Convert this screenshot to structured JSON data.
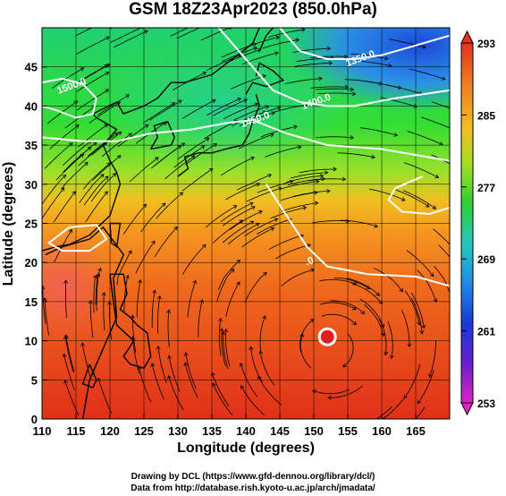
{
  "title": "GSM 18Z23Apr2023 (850.0hPa)",
  "xaxis": {
    "label": "Longitude (degrees)",
    "min": 110,
    "max": 170,
    "ticks": [
      110,
      115,
      120,
      125,
      130,
      135,
      140,
      145,
      150,
      155,
      160,
      165
    ]
  },
  "yaxis": {
    "label": "Latitude  (degrees)",
    "min": 0,
    "max": 50,
    "ticks": [
      0,
      5,
      10,
      15,
      20,
      25,
      30,
      35,
      40,
      45
    ]
  },
  "colorbar": {
    "min": 253,
    "max": 293,
    "labels": [
      293,
      285,
      277,
      269,
      261,
      253
    ]
  },
  "contours": [
    {
      "label": "1350.0",
      "lon": 157,
      "lat": 45.7,
      "color": "#ffffff"
    },
    {
      "label": "1400.0",
      "lon": 150.5,
      "lat": 40.2,
      "color": "#ffffff"
    },
    {
      "label": "1450.0",
      "lon": 141.5,
      "lat": 37.9,
      "color": "#ffffff"
    },
    {
      "label": "1500.0",
      "lon": 114.5,
      "lat": 42.2,
      "color": "#ffffff"
    },
    {
      "label": ".0",
      "lon": 149.5,
      "lat": 19.8,
      "color": "#ffffff"
    }
  ],
  "marker": {
    "lon": 152,
    "lat": 10.5,
    "color": "#ffffff"
  },
  "credits": [
    "Drawing by DCL (https://www.gfd-dennou.org/library/dcl/)",
    "Data from http://database.rish.kyoto-u.ac.jp/arch/jmadata/"
  ]
}
